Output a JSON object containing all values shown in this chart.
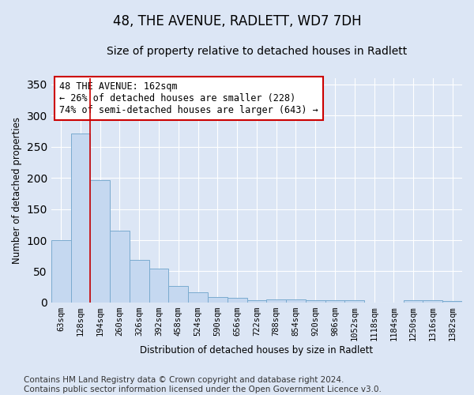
{
  "title": "48, THE AVENUE, RADLETT, WD7 7DH",
  "subtitle": "Size of property relative to detached houses in Radlett",
  "xlabel": "Distribution of detached houses by size in Radlett",
  "ylabel": "Number of detached properties",
  "categories": [
    "63sqm",
    "128sqm",
    "194sqm",
    "260sqm",
    "326sqm",
    "392sqm",
    "458sqm",
    "524sqm",
    "590sqm",
    "656sqm",
    "722sqm",
    "788sqm",
    "854sqm",
    "920sqm",
    "986sqm",
    "1052sqm",
    "1118sqm",
    "1184sqm",
    "1250sqm",
    "1316sqm",
    "1382sqm"
  ],
  "values": [
    100,
    271,
    196,
    115,
    68,
    54,
    26,
    16,
    9,
    8,
    4,
    5,
    5,
    3,
    3,
    4,
    0,
    0,
    4,
    3,
    2
  ],
  "bar_color": "#c5d8f0",
  "bar_edge_color": "#7aabcf",
  "vline_x": 1.5,
  "vline_color": "#cc0000",
  "annotation_text": "48 THE AVENUE: 162sqm\n← 26% of detached houses are smaller (228)\n74% of semi-detached houses are larger (643) →",
  "annotation_box_color": "#ffffff",
  "annotation_box_edge": "#cc0000",
  "ylim": [
    0,
    360
  ],
  "yticks": [
    0,
    50,
    100,
    150,
    200,
    250,
    300,
    350
  ],
  "bg_color": "#dce6f5",
  "plot_bg_color": "#dce6f5",
  "footer": "Contains HM Land Registry data © Crown copyright and database right 2024.\nContains public sector information licensed under the Open Government Licence v3.0.",
  "title_fontsize": 12,
  "subtitle_fontsize": 10,
  "footer_fontsize": 7.5
}
